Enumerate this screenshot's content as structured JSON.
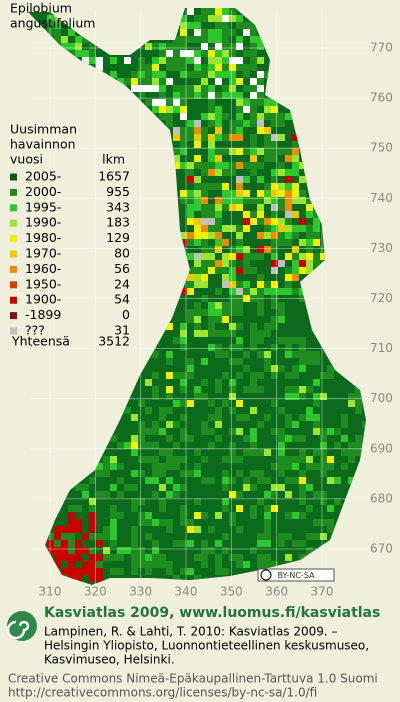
{
  "title": [
    "Epilobium",
    "angustifolium"
  ],
  "legend": {
    "header": [
      "Uusimman",
      "havainnon",
      "vuosi"
    ],
    "count_header": "lkm",
    "items": [
      {
        "label": "2005-",
        "count": 1657,
        "color": "#0a5a14"
      },
      {
        "label": "2000-",
        "count": 955,
        "color": "#1e8c1e"
      },
      {
        "label": "1995-",
        "count": 343,
        "color": "#2ec82e"
      },
      {
        "label": "1990-",
        "count": 183,
        "color": "#9be632"
      },
      {
        "label": "1980-",
        "count": 129,
        "color": "#f0f000"
      },
      {
        "label": "1970-",
        "count": 80,
        "color": "#f0c800"
      },
      {
        "label": "1960-",
        "count": 56,
        "color": "#f08c00"
      },
      {
        "label": "1950-",
        "count": 24,
        "color": "#e03c00"
      },
      {
        "label": "1900-",
        "count": 54,
        "color": "#c80000"
      },
      {
        "label": "-1899",
        "count": 0,
        "color": "#801010"
      },
      {
        "label": "???",
        "count": 31,
        "color": "#c0c0c0"
      }
    ],
    "total_label": "Yhteensä",
    "total": 3512
  },
  "map": {
    "yticks": [
      670,
      680,
      690,
      700,
      710,
      720,
      730,
      740,
      750,
      760,
      770
    ],
    "xticks": [
      310,
      320,
      330,
      340,
      350,
      360,
      370
    ]
  },
  "badge": "BY-NC-SA",
  "footer": {
    "heading": "Kasviatlas 2009, www.luomus.fi/kasviatlas",
    "citation": [
      "Lampinen, R. & Lahti, T. 2010: Kasviatlas 2009. –",
      "Helsingin Yliopisto, Luonnontieteellinen keskusmuseo,",
      "Kasvimuseo, Helsinki."
    ],
    "license": [
      "Creative Commons Nimeä-Epäkaupallinen-Tarttuva 1.0 Suomi",
      "http://creativecommons.org/licenses/by-nc-sa/1.0/fi"
    ]
  }
}
